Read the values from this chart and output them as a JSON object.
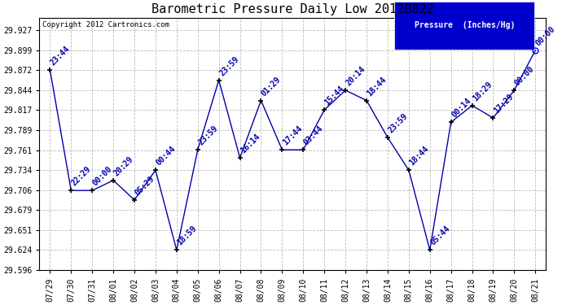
{
  "title": "Barometric Pressure Daily Low 20120822",
  "copyright": "Copyright 2012 Cartronics.com",
  "legend_label": "Pressure  (Inches/Hg)",
  "background_color": "#ffffff",
  "line_color": "#0000aa",
  "point_color": "#000000",
  "legend_bg": "#0000cc",
  "legend_text_color": "#ffffff",
  "x_labels": [
    "07/29",
    "07/30",
    "07/31",
    "08/01",
    "08/02",
    "08/03",
    "08/04",
    "08/05",
    "08/06",
    "08/07",
    "08/08",
    "08/09",
    "08/10",
    "08/11",
    "08/12",
    "08/13",
    "08/14",
    "08/15",
    "08/16",
    "08/17",
    "08/18",
    "08/19",
    "08/20",
    "08/21"
  ],
  "y_values": [
    29.872,
    29.706,
    29.706,
    29.72,
    29.693,
    29.734,
    29.624,
    29.762,
    29.858,
    29.751,
    29.83,
    29.762,
    29.762,
    29.817,
    29.844,
    29.83,
    29.779,
    29.734,
    29.624,
    29.8,
    29.823,
    29.806,
    29.844,
    29.899
  ],
  "point_labels": [
    "23:44",
    "22:29",
    "00:00",
    "20:29",
    "05:29",
    "00:44",
    "18:59",
    "23:59",
    "23:59",
    "16:14",
    "01:29",
    "17:44",
    "03:44",
    "15:44",
    "20:14",
    "18:44",
    "23:59",
    "18:44",
    "05:44",
    "00:14",
    "18:29",
    "17:29",
    "00:00",
    "00:00"
  ],
  "ylim_min": 29.596,
  "ylim_max": 29.944,
  "yticks": [
    29.596,
    29.624,
    29.651,
    29.679,
    29.706,
    29.734,
    29.761,
    29.789,
    29.817,
    29.844,
    29.872,
    29.899,
    29.927
  ],
  "title_fontsize": 11,
  "tick_fontsize": 7,
  "label_fontsize": 7,
  "grid_color": "#bbbbbb",
  "last_point_color": "#0000ff"
}
